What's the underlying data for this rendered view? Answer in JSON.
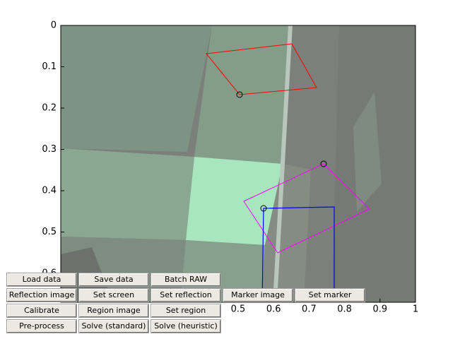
{
  "axes": {
    "xlim": [
      0,
      1
    ],
    "ylim": [
      0,
      0.67
    ],
    "xticks": [
      0.5,
      0.6,
      0.7,
      0.8,
      0.9,
      1
    ],
    "yticks": [
      0,
      0.1,
      0.2,
      0.3,
      0.4,
      0.5,
      0.6
    ]
  },
  "buttons": [
    [
      "Load data",
      "Save data",
      "Batch RAW"
    ],
    [
      "Reflection image",
      "Set screen",
      "Set reflection",
      "Marker image",
      "Set marker"
    ],
    [
      "Calibrate",
      "Region image",
      "Set region"
    ],
    [
      "Pre-process",
      "Solve (standard)",
      "Solve (heuristic)"
    ]
  ]
}
